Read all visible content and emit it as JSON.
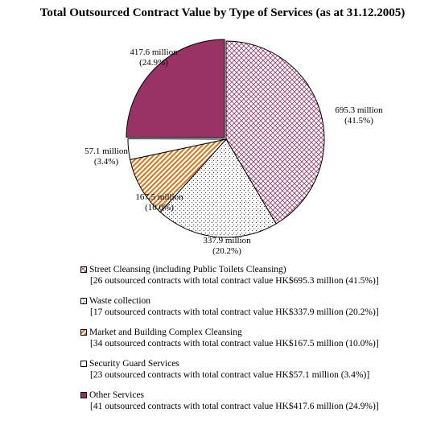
{
  "chart_data": {
    "type": "pie",
    "title": "Total Outsourced Contract Value by Type of Services (as at 31.12.2005)",
    "slices": [
      {
        "name": "Street Cleansing (including Public Toilets Cleansing)",
        "value": 695.3,
        "percent": 41.5,
        "value_label": "695.3 million",
        "percent_label": "(41.5%)",
        "detail": "[26 outsourced contracts with total contract value HK$695.3 million (41.5%)]",
        "color": "#993366",
        "pattern": "crosshatch"
      },
      {
        "name": "Waste collection",
        "value": 337.9,
        "percent": 20.2,
        "value_label": "337.9 million",
        "percent_label": "(20.2%)",
        "detail": "[17 outsourced contracts with total contract value HK$337.9 million (20.2%)]",
        "color": "#000000",
        "pattern": "dots"
      },
      {
        "name": "Market and Building Complex Cleansing",
        "value": 167.5,
        "percent": 10.0,
        "value_label": "167.5 million",
        "percent_label": "(10.0%)",
        "detail": "[34 outsourced contracts with total contract value HK$167.5 million (10.0%)]",
        "color": "#e07010",
        "pattern": "diagonal-stripes"
      },
      {
        "name": "Security Guard Services",
        "value": 57.1,
        "percent": 3.4,
        "value_label": "57.1 million",
        "percent_label": "(3.4%)",
        "detail": "[23 outsourced contracts with total contract value HK$57.1 million (3.4%)]",
        "color": "#ffffff",
        "pattern": "solid"
      },
      {
        "name": "Other Services",
        "value": 417.6,
        "percent": 24.9,
        "value_label": "417.6 million",
        "percent_label": "(24.9%)",
        "detail": "[41 outsourced contracts with total contract value HK$417.6 million (24.9%)]",
        "color": "#993366",
        "pattern": "solid"
      }
    ],
    "start": "12 o'clock",
    "direction": "clockwise",
    "legend_position": "bottom"
  }
}
